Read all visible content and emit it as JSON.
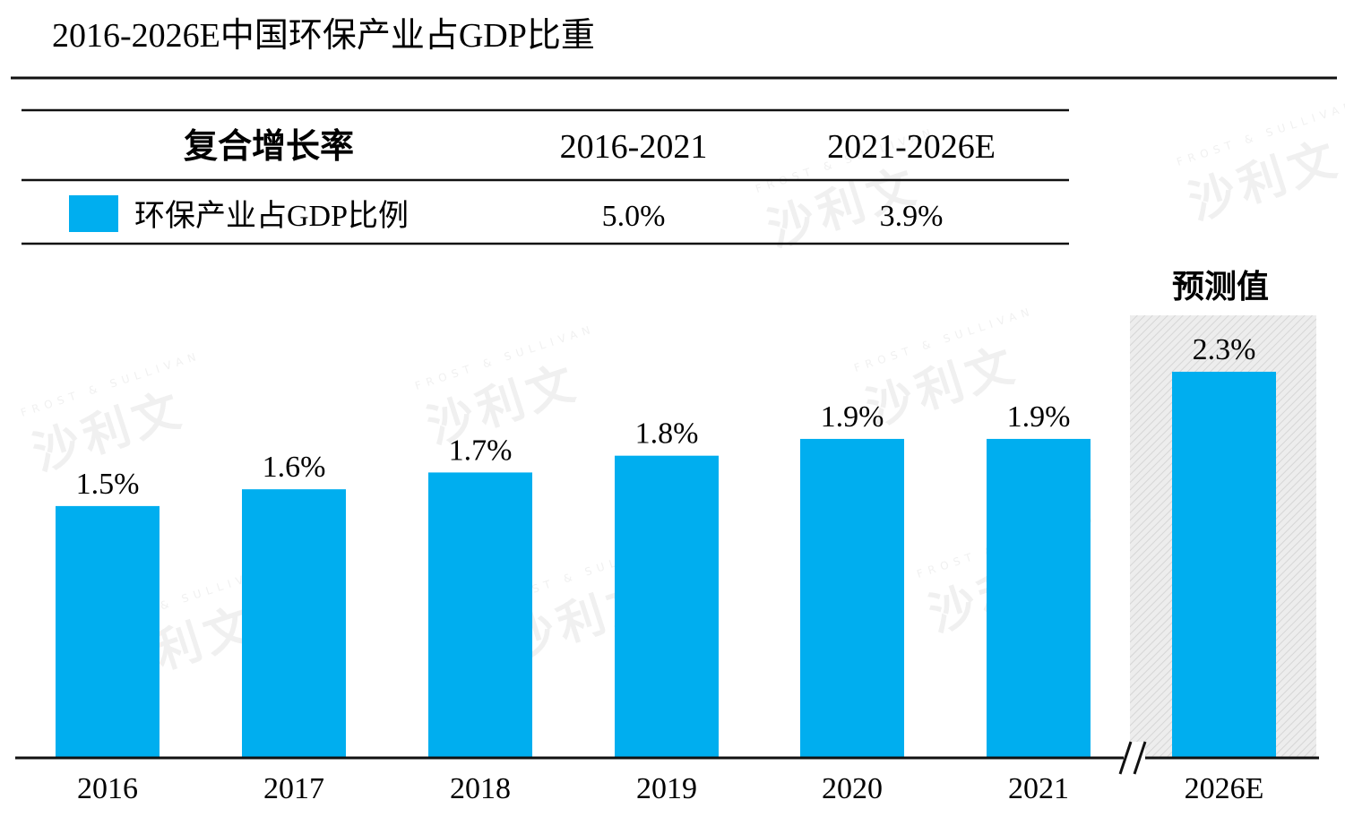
{
  "title": "2016-2026E中国环保产业占GDP比重",
  "colors": {
    "bar": "#00aeef",
    "forecast_bg": "#e9e9e9",
    "rule": "#111111"
  },
  "cagr_table": {
    "header": [
      "复合增长率",
      "2016-2021",
      "2021-2026E"
    ],
    "row": {
      "label": "环保产业占GDP比例",
      "values": [
        "5.0%",
        "3.9%"
      ]
    }
  },
  "forecast_label": "预测值",
  "watermark": {
    "cn": "沙利文",
    "en": "FROST & SULLIVAN"
  },
  "chart_data": {
    "type": "bar",
    "title": "2016-2026E中国环保产业占GDP比重",
    "categories": [
      "2016",
      "2017",
      "2018",
      "2019",
      "2020",
      "2021",
      "2026E"
    ],
    "series": [
      {
        "name": "环保产业占GDP比例",
        "values": [
          1.5,
          1.6,
          1.7,
          1.8,
          1.9,
          1.9,
          2.3
        ]
      }
    ],
    "data_labels": [
      "1.5%",
      "1.6%",
      "1.7%",
      "1.8%",
      "1.9%",
      "1.9%",
      "2.3%"
    ],
    "unit": "%",
    "ylim": [
      0,
      2.3
    ],
    "forecast_categories": [
      "2026E"
    ],
    "axis_break_before": "2026E",
    "grid": false,
    "legend": "table-top-left"
  }
}
